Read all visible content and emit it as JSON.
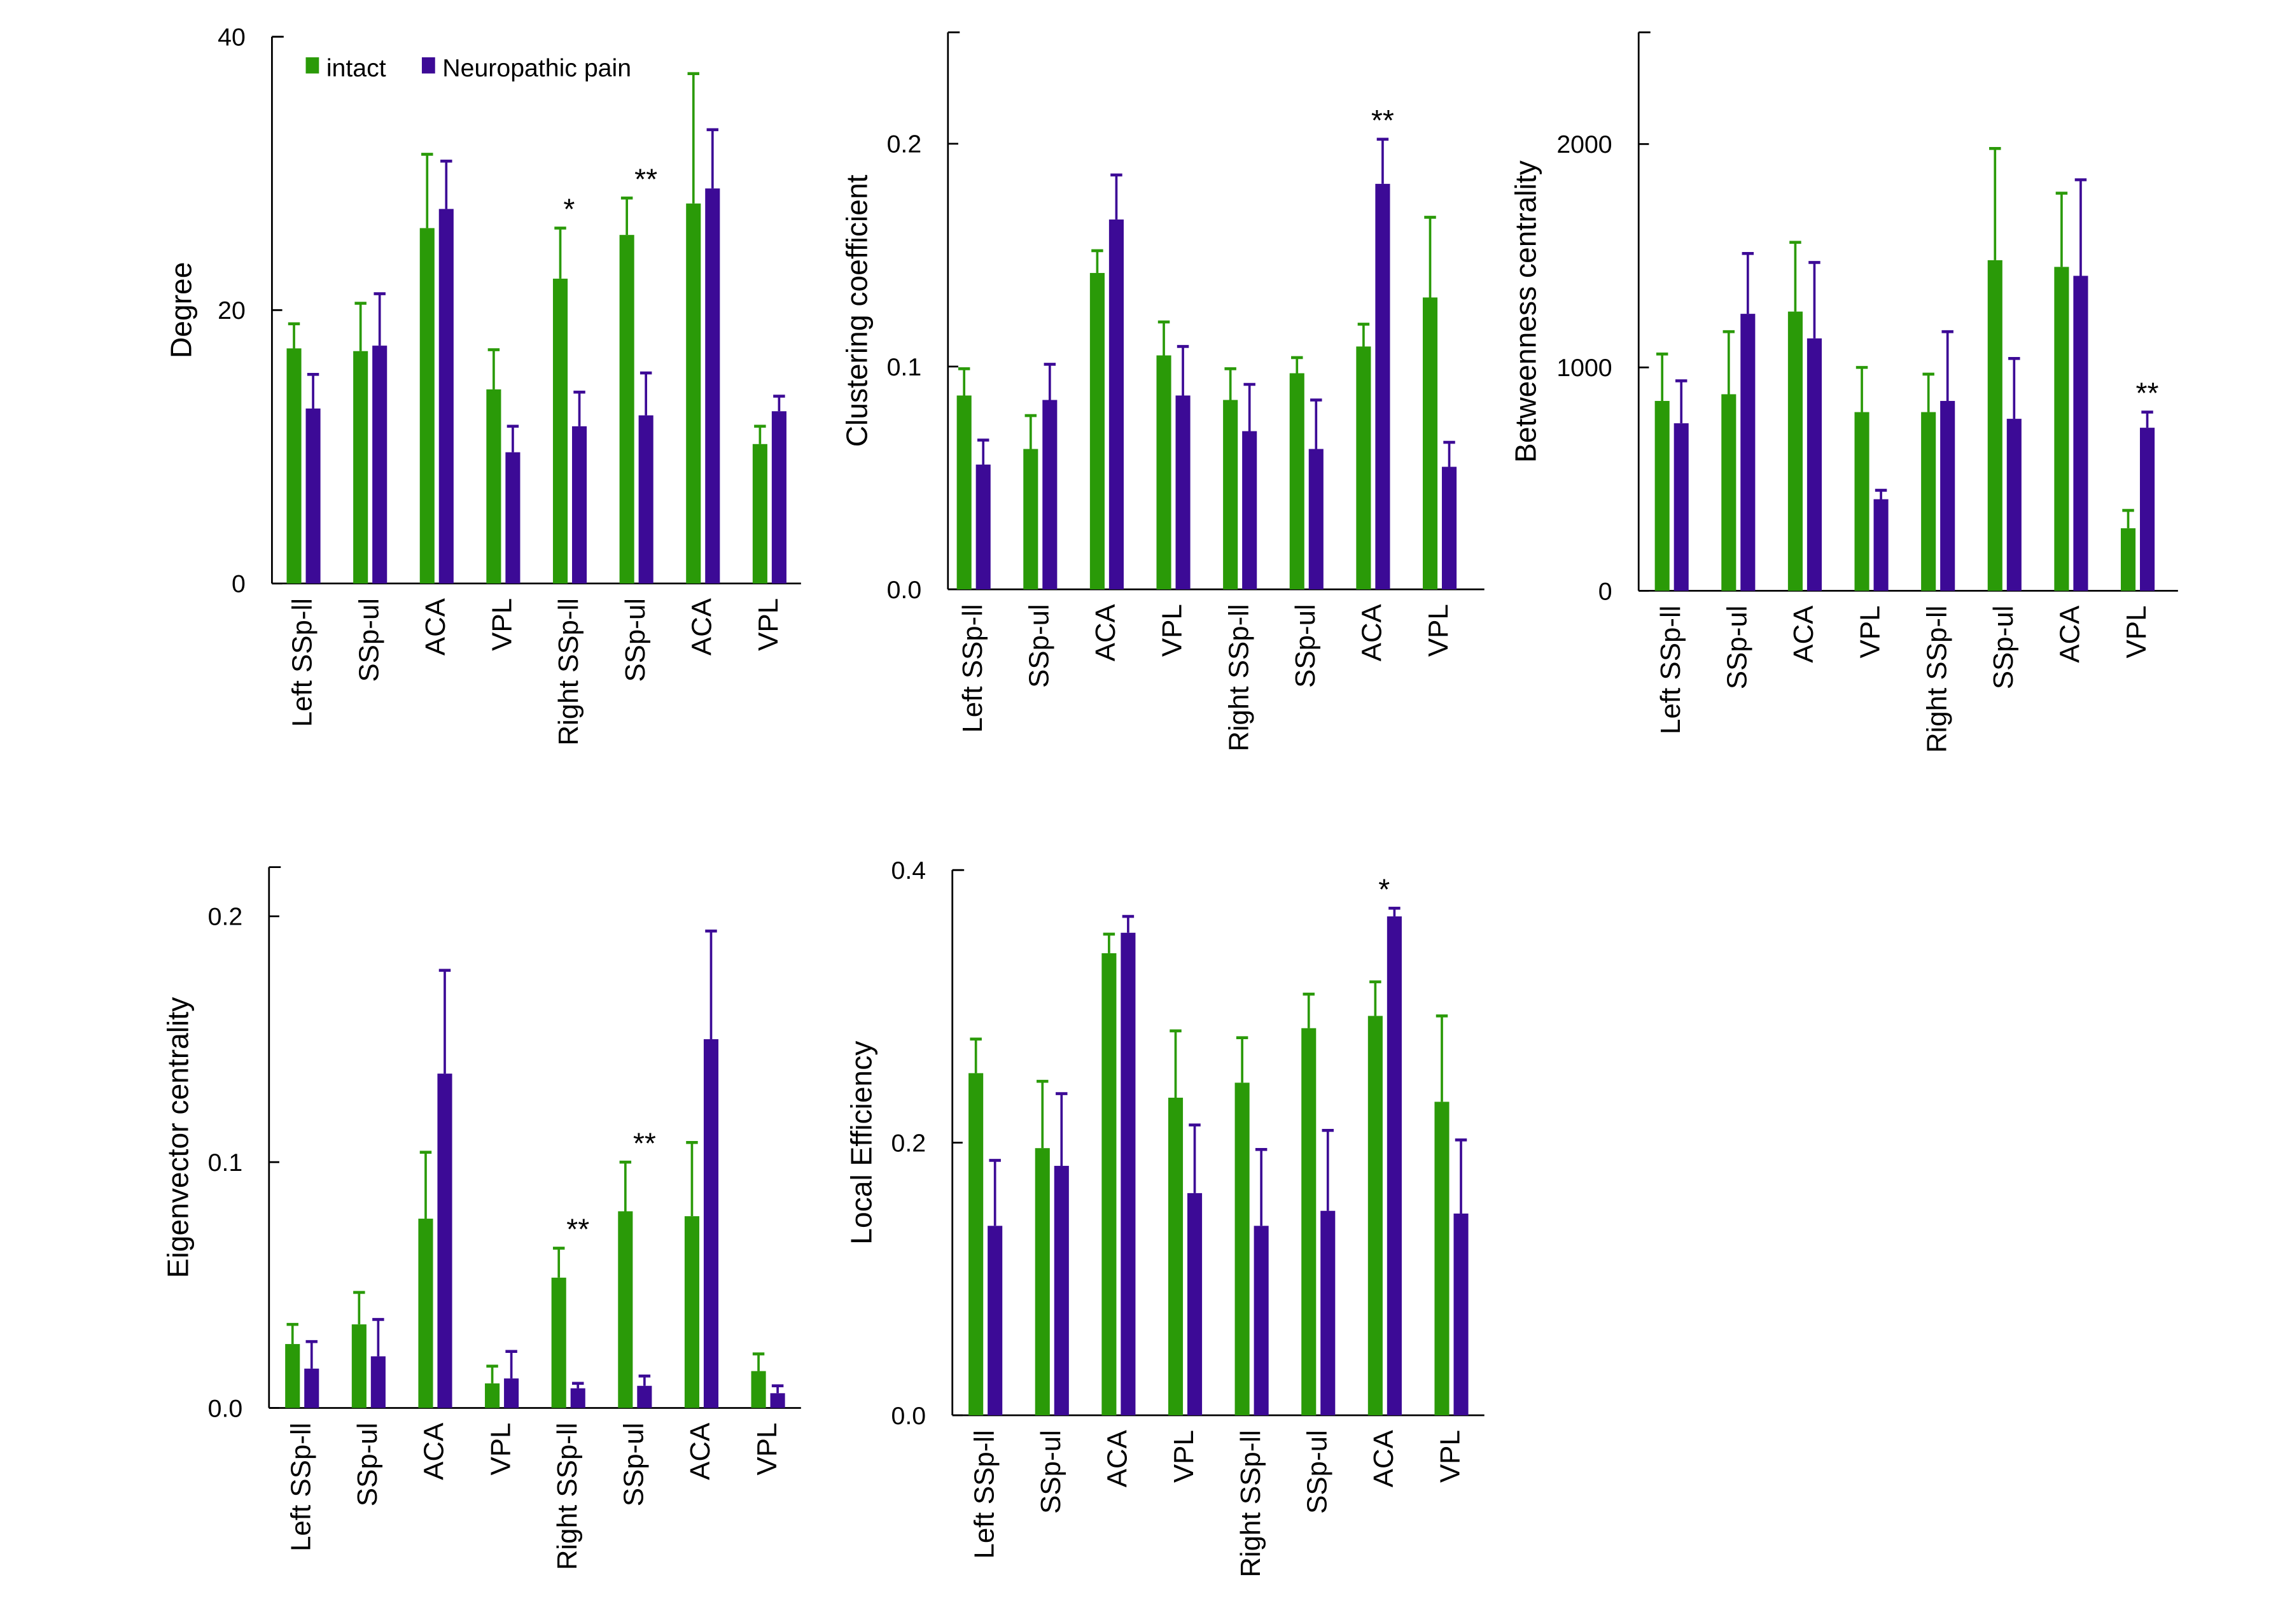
{
  "legend": {
    "intact": "intact",
    "pain": "Neuropathic pain"
  },
  "colors": {
    "intact": "#2a9a08",
    "pain": "#3c0a96"
  },
  "chart_data": [
    {
      "type": "bar",
      "ylabel": "Degree",
      "ylim": [
        0,
        40
      ],
      "yticks": [
        0,
        20,
        40
      ],
      "ytick_labels": [
        "0",
        "20",
        "40"
      ],
      "categories": [
        "Left SSp-ll",
        "SSp-ul",
        "ACA",
        "VPL",
        "Right SSp-ll",
        "SSp-ul",
        "ACA",
        "VPL"
      ],
      "series": [
        {
          "name": "intact",
          "values": [
            17.2,
            17.0,
            26.0,
            14.2,
            22.3,
            25.5,
            27.8,
            10.2
          ],
          "err_top": [
            19.0,
            20.5,
            31.4,
            17.1,
            26.0,
            28.2,
            37.3,
            11.5
          ]
        },
        {
          "name": "Neuropathic pain",
          "values": [
            12.8,
            17.4,
            27.4,
            9.6,
            11.5,
            12.3,
            28.9,
            12.6
          ],
          "err_top": [
            15.3,
            21.2,
            30.9,
            11.5,
            14.0,
            15.4,
            33.2,
            13.7
          ]
        }
      ],
      "annotations": [
        {
          "category_index": 4,
          "text": "*"
        },
        {
          "category_index": 5,
          "text": "**"
        }
      ],
      "legend": "top-left"
    },
    {
      "type": "bar",
      "ylabel": "Clustering coefficient",
      "ylim": [
        0,
        0.25
      ],
      "yticks": [
        0,
        0.1,
        0.2
      ],
      "ytick_labels": [
        "0.0",
        "0.1",
        "0.2"
      ],
      "categories": [
        "Left SSp-ll",
        "SSp-ul",
        "ACA",
        "VPL",
        "Right SSp-ll",
        "SSp-ul",
        "ACA",
        "VPL"
      ],
      "series": [
        {
          "name": "intact",
          "values": [
            0.087,
            0.063,
            0.142,
            0.105,
            0.085,
            0.097,
            0.109,
            0.131
          ],
          "err_top": [
            0.099,
            0.078,
            0.152,
            0.12,
            0.099,
            0.104,
            0.119,
            0.167
          ]
        },
        {
          "name": "Neuropathic pain",
          "values": [
            0.056,
            0.085,
            0.166,
            0.087,
            0.071,
            0.063,
            0.182,
            0.055
          ],
          "err_top": [
            0.067,
            0.101,
            0.186,
            0.109,
            0.092,
            0.085,
            0.202,
            0.066
          ]
        }
      ],
      "annotations": [
        {
          "category_index": 6,
          "text": "**"
        }
      ]
    },
    {
      "type": "bar",
      "ylabel": "Betweenness centrality",
      "ylim": [
        0,
        2500
      ],
      "yticks": [
        0,
        1000,
        2000
      ],
      "ytick_labels": [
        "0",
        "1000",
        "2000"
      ],
      "categories": [
        "Left SSp-ll",
        "SSp-ul",
        "ACA",
        "VPL",
        "Right SSp-ll",
        "SSp-ul",
        "ACA",
        "VPL"
      ],
      "series": [
        {
          "name": "intact",
          "values": [
            850,
            880,
            1250,
            800,
            800,
            1480,
            1450,
            280
          ],
          "err_top": [
            1060,
            1160,
            1560,
            1000,
            970,
            1980,
            1780,
            360
          ]
        },
        {
          "name": "Neuropathic pain",
          "values": [
            750,
            1240,
            1130,
            410,
            850,
            770,
            1410,
            730
          ],
          "err_top": [
            940,
            1510,
            1470,
            450,
            1160,
            1040,
            1840,
            800
          ]
        }
      ],
      "annotations": [
        {
          "category_index": 7,
          "text": "**"
        }
      ]
    },
    {
      "type": "bar",
      "ylabel": "Eigenvector centrality",
      "ylim": [
        0,
        0.22
      ],
      "yticks": [
        0,
        0.1,
        0.2
      ],
      "ytick_labels": [
        "0.0",
        "0.1",
        "0.2"
      ],
      "categories": [
        "Left SSp-ll",
        "SSp-ul",
        "ACA",
        "VPL",
        "Right SSp-ll",
        "SSp-ul",
        "ACA",
        "VPL"
      ],
      "series": [
        {
          "name": "intact",
          "values": [
            0.026,
            0.034,
            0.077,
            0.01,
            0.053,
            0.08,
            0.078,
            0.015
          ],
          "err_top": [
            0.034,
            0.047,
            0.104,
            0.017,
            0.065,
            0.1,
            0.108,
            0.022
          ]
        },
        {
          "name": "Neuropathic pain",
          "values": [
            0.016,
            0.021,
            0.136,
            0.012,
            0.008,
            0.009,
            0.15,
            0.006
          ],
          "err_top": [
            0.027,
            0.036,
            0.178,
            0.023,
            0.01,
            0.013,
            0.194,
            0.009
          ]
        }
      ],
      "annotations": [
        {
          "category_index": 4,
          "text": "**"
        },
        {
          "category_index": 5,
          "text": "**"
        }
      ]
    },
    {
      "type": "bar",
      "ylabel": "Local Efficiency",
      "ylim": [
        0,
        0.4
      ],
      "yticks": [
        0,
        0.2,
        0.4
      ],
      "ytick_labels": [
        "0.0",
        "0.2",
        "0.4"
      ],
      "categories": [
        "Left SSp-ll",
        "SSp-ul",
        "ACA",
        "VPL",
        "Right SSp-ll",
        "SSp-ul",
        "ACA",
        "VPL"
      ],
      "series": [
        {
          "name": "intact",
          "values": [
            0.251,
            0.196,
            0.339,
            0.233,
            0.244,
            0.284,
            0.293,
            0.23
          ],
          "err_top": [
            0.276,
            0.245,
            0.353,
            0.282,
            0.277,
            0.309,
            0.318,
            0.293
          ]
        },
        {
          "name": "Neuropathic pain",
          "values": [
            0.139,
            0.183,
            0.354,
            0.163,
            0.139,
            0.15,
            0.366,
            0.148
          ],
          "err_top": [
            0.187,
            0.236,
            0.366,
            0.213,
            0.195,
            0.209,
            0.372,
            0.202
          ]
        }
      ],
      "annotations": [
        {
          "category_index": 6,
          "text": "*"
        }
      ]
    }
  ]
}
